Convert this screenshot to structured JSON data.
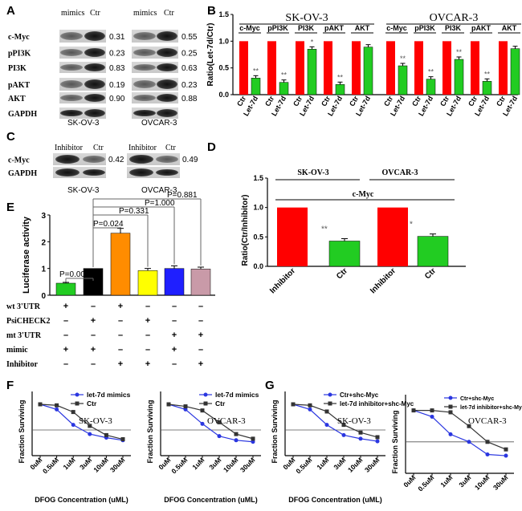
{
  "panel_labels": {
    "A": "A",
    "B": "B",
    "C": "C",
    "D": "D",
    "E": "E",
    "F": "F",
    "G": "G"
  },
  "blotA": {
    "sk": {
      "cols": [
        "mimics",
        "Ctr"
      ],
      "label": "SK-OV-3",
      "values": [
        "0.31",
        "0.23",
        "0.83",
        "0.19",
        "0.90"
      ]
    },
    "ov": {
      "cols": [
        "mimics",
        "Ctr"
      ],
      "label": "OVCAR-3",
      "values": [
        "0.55",
        "0.25",
        "0.63",
        "0.23",
        "0.88"
      ]
    },
    "rows": [
      "c-Myc",
      "pPI3K",
      "PI3K",
      "pAKT",
      "AKT",
      "GAPDH"
    ]
  },
  "blotC": {
    "sk": {
      "cols": [
        "Inhibitor",
        "Ctr"
      ],
      "label": "SK-OV-3",
      "value": "0.42"
    },
    "ov": {
      "cols": [
        "Inhibitor",
        "Ctr"
      ],
      "label": "OVCAR-3",
      "value": "0.49"
    },
    "rows": [
      "c-Myc",
      "GAPDH"
    ]
  },
  "colors": {
    "red": "#ff0000",
    "green": "#22cc22",
    "blue": "#1f1fff",
    "orange": "#ff8c00",
    "yellow": "#ffff00",
    "pink": "#c99aa8",
    "black": "#000000",
    "lineBlue": "#2a36e0",
    "lineBlack": "#333333"
  },
  "chart_data": [
    {
      "id": "B",
      "type": "bar",
      "title": "",
      "xlabel": "",
      "ylabel": "Ratio(Let-7d/Ctr)",
      "ylim": [
        0,
        1.5
      ],
      "yticks": [
        "0.0",
        "0.5",
        "1.0",
        "1.5"
      ],
      "groups": [
        {
          "name": "SK-OV-3",
          "targets": [
            {
              "name": "c-Myc",
              "ctr": 1.0,
              "let7d": 0.31,
              "sig": "**"
            },
            {
              "name": "pPI3K",
              "ctr": 1.0,
              "let7d": 0.23,
              "sig": "**"
            },
            {
              "name": "PI3K",
              "ctr": 1.0,
              "let7d": 0.85,
              "sig": "*"
            },
            {
              "name": "pAKT",
              "ctr": 1.0,
              "let7d": 0.19,
              "sig": "**"
            },
            {
              "name": "AKT",
              "ctr": 1.0,
              "let7d": 0.89,
              "sig": ""
            }
          ]
        },
        {
          "name": "OVCAR-3",
          "targets": [
            {
              "name": "c-Myc",
              "ctr": 1.0,
              "let7d": 0.54,
              "sig": "**"
            },
            {
              "name": "pPI3K",
              "ctr": 1.0,
              "let7d": 0.29,
              "sig": "**"
            },
            {
              "name": "PI3K",
              "ctr": 1.0,
              "let7d": 0.66,
              "sig": "**"
            },
            {
              "name": "pAKT",
              "ctr": 1.0,
              "let7d": 0.25,
              "sig": "**"
            },
            {
              "name": "AKT",
              "ctr": 1.0,
              "let7d": 0.86,
              "sig": ""
            }
          ]
        }
      ],
      "bar_labels": [
        "Ctr",
        "Let-7d"
      ]
    },
    {
      "id": "D",
      "type": "bar",
      "ylabel": "Ratio(Ctr/Inhibitor)",
      "ylim": [
        0,
        1.5
      ],
      "yticks": [
        "0.0",
        "0.5",
        "1.0",
        "1.5"
      ],
      "group_labels": [
        "SK-OV-3",
        "OVCAR-3"
      ],
      "target": "c-Myc",
      "categories": [
        "Inhibitor",
        "Ctr",
        "Inhibitor",
        "Ctr"
      ],
      "values": [
        1.0,
        0.43,
        1.0,
        0.51
      ],
      "errors": [
        0,
        0.04,
        0,
        0.04
      ],
      "sig": [
        "",
        "**",
        "",
        "*"
      ]
    },
    {
      "id": "E",
      "type": "bar",
      "ylabel": "Luciferase activity",
      "ylim": [
        0,
        3
      ],
      "yticks": [
        "0",
        "1",
        "2",
        "3"
      ],
      "values": [
        0.45,
        1.0,
        2.32,
        0.92,
        1.0,
        0.98
      ],
      "errors": [
        0.03,
        0,
        0.18,
        0.08,
        0.1,
        0.07
      ],
      "pvalues": [
        "P=0.006",
        "P=0.024",
        "P=0.331",
        "P=1.000",
        "P=0.881"
      ],
      "rows": [
        {
          "label": "wt 3'UTR",
          "signs": [
            "+",
            "–",
            "+",
            "–",
            "–",
            "–"
          ]
        },
        {
          "label": "PsiCHECK2",
          "signs": [
            "–",
            "+",
            "–",
            "+",
            "–",
            "–"
          ]
        },
        {
          "label": "mt 3'UTR",
          "signs": [
            "–",
            "–",
            "–",
            "–",
            "+",
            "+"
          ]
        },
        {
          "label": "mimic",
          "signs": [
            "+",
            "+",
            "–",
            "–",
            "+",
            "–"
          ]
        },
        {
          "label": "Inhibitor",
          "signs": [
            "–",
            "–",
            "+",
            "+",
            "–",
            "+"
          ]
        }
      ]
    },
    {
      "id": "F1",
      "type": "line",
      "cell": "SK-OV-3",
      "ylabel": "Fraction Surviving",
      "xlabel": "DFOG Concentration (uML)",
      "categories": [
        "0uM",
        "0.5uM",
        "1uM",
        "3uM",
        "10uM",
        "30uM"
      ],
      "ylim": [
        0,
        1.25
      ],
      "series": [
        {
          "name": "let-7d mimics",
          "values": [
            1.0,
            0.9,
            0.6,
            0.42,
            0.35,
            0.3
          ]
        },
        {
          "name": "Ctr",
          "values": [
            1.0,
            0.98,
            0.85,
            0.58,
            0.4,
            0.32
          ]
        }
      ]
    },
    {
      "id": "F2",
      "type": "line",
      "cell": "OVCAR-3",
      "ylabel": "Fraction Surviving",
      "xlabel": "DFOG Concentration (uML)",
      "categories": [
        "0uM",
        "0.5uM",
        "1uM",
        "3uM",
        "10uM",
        "30uM"
      ],
      "ylim": [
        0,
        1.25
      ],
      "series": [
        {
          "name": "let-7d mimics",
          "values": [
            1.0,
            0.9,
            0.62,
            0.38,
            0.3,
            0.27
          ]
        },
        {
          "name": "Ctr",
          "values": [
            1.0,
            0.96,
            0.88,
            0.65,
            0.42,
            0.33
          ]
        }
      ]
    },
    {
      "id": "G1",
      "type": "line",
      "cell": "SK-OV-3",
      "ylabel": "Fraction Surviving",
      "xlabel": "DFOG Concentration (uML)",
      "categories": [
        "0uM",
        "0.5uM",
        "1uM",
        "3uM",
        "10uM",
        "30uM"
      ],
      "ylim": [
        0,
        1.25
      ],
      "series": [
        {
          "name": "Ctr+shc-Myc",
          "values": [
            1.0,
            0.9,
            0.6,
            0.4,
            0.33,
            0.28
          ]
        },
        {
          "name": "let-7d inhibitor+shc-Myc",
          "values": [
            1.0,
            0.98,
            0.86,
            0.6,
            0.45,
            0.36
          ]
        }
      ]
    },
    {
      "id": "G2",
      "type": "line",
      "cell": "OVCAR-3",
      "ylabel": "Fraction Surviving",
      "xlabel": "DFOG Concentration (uML)",
      "categories": [
        "0uM",
        "0.5uM",
        "1uM",
        "3uM",
        "10uM",
        "30uM"
      ],
      "ylim": [
        0,
        1.25
      ],
      "series": [
        {
          "name": "Ctr+shc-Myc",
          "values": [
            1.0,
            0.9,
            0.62,
            0.5,
            0.3,
            0.28
          ]
        },
        {
          "name": "let-7d inhibitor+shc-Myc",
          "values": [
            1.0,
            1.0,
            0.97,
            0.75,
            0.5,
            0.38
          ]
        }
      ]
    }
  ]
}
